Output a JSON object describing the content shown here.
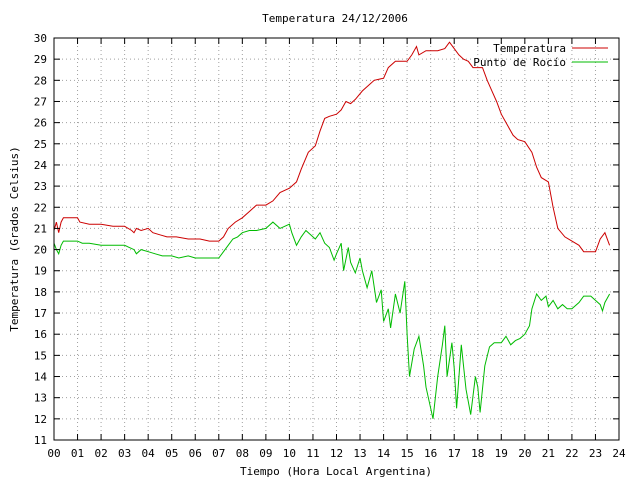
{
  "chart_data": {
    "type": "line",
    "title": "Temperatura 24/12/2006",
    "xlabel": "Tiempo (Hora Local Argentina)",
    "ylabel": "Temperatura (Grados Celsius)",
    "xlim": [
      0,
      24
    ],
    "ylim": [
      11,
      30
    ],
    "x_ticks": [
      "00",
      "01",
      "02",
      "03",
      "04",
      "05",
      "06",
      "07",
      "08",
      "09",
      "10",
      "11",
      "12",
      "13",
      "14",
      "15",
      "16",
      "17",
      "18",
      "19",
      "20",
      "21",
      "22",
      "23",
      "24"
    ],
    "y_ticks": [
      11,
      12,
      13,
      14,
      15,
      16,
      17,
      18,
      19,
      20,
      21,
      22,
      23,
      24,
      25,
      26,
      27,
      28,
      29,
      30
    ],
    "grid": true,
    "legend_position": "top-right",
    "series": [
      {
        "name": "Temperatura",
        "color": "#cc0000",
        "points": [
          [
            0.0,
            20.9
          ],
          [
            0.1,
            21.3
          ],
          [
            0.2,
            20.8
          ],
          [
            0.3,
            21.3
          ],
          [
            0.4,
            21.5
          ],
          [
            1.0,
            21.5
          ],
          [
            1.1,
            21.3
          ],
          [
            1.5,
            21.2
          ],
          [
            2.0,
            21.2
          ],
          [
            2.5,
            21.1
          ],
          [
            3.0,
            21.1
          ],
          [
            3.3,
            20.9
          ],
          [
            3.4,
            20.8
          ],
          [
            3.5,
            21.0
          ],
          [
            3.7,
            20.9
          ],
          [
            4.0,
            21.0
          ],
          [
            4.2,
            20.8
          ],
          [
            4.5,
            20.7
          ],
          [
            4.8,
            20.6
          ],
          [
            5.2,
            20.6
          ],
          [
            5.7,
            20.5
          ],
          [
            6.2,
            20.5
          ],
          [
            6.6,
            20.4
          ],
          [
            7.0,
            20.4
          ],
          [
            7.2,
            20.6
          ],
          [
            7.4,
            21.0
          ],
          [
            7.7,
            21.3
          ],
          [
            8.0,
            21.5
          ],
          [
            8.3,
            21.8
          ],
          [
            8.6,
            22.1
          ],
          [
            9.0,
            22.1
          ],
          [
            9.3,
            22.3
          ],
          [
            9.6,
            22.7
          ],
          [
            10.0,
            22.9
          ],
          [
            10.3,
            23.2
          ],
          [
            10.5,
            23.8
          ],
          [
            10.8,
            24.6
          ],
          [
            11.1,
            24.9
          ],
          [
            11.3,
            25.6
          ],
          [
            11.5,
            26.2
          ],
          [
            11.7,
            26.3
          ],
          [
            12.0,
            26.4
          ],
          [
            12.2,
            26.6
          ],
          [
            12.4,
            27.0
          ],
          [
            12.6,
            26.9
          ],
          [
            12.8,
            27.1
          ],
          [
            13.1,
            27.5
          ],
          [
            13.4,
            27.8
          ],
          [
            13.6,
            28.0
          ],
          [
            14.0,
            28.1
          ],
          [
            14.2,
            28.6
          ],
          [
            14.5,
            28.9
          ],
          [
            15.0,
            28.9
          ],
          [
            15.2,
            29.2
          ],
          [
            15.4,
            29.6
          ],
          [
            15.5,
            29.2
          ],
          [
            15.8,
            29.4
          ],
          [
            16.3,
            29.4
          ],
          [
            16.6,
            29.5
          ],
          [
            16.8,
            29.8
          ],
          [
            17.0,
            29.5
          ],
          [
            17.2,
            29.2
          ],
          [
            17.4,
            29.0
          ],
          [
            17.6,
            28.9
          ],
          [
            17.8,
            28.6
          ],
          [
            18.2,
            28.6
          ],
          [
            18.4,
            28.0
          ],
          [
            18.6,
            27.5
          ],
          [
            18.8,
            27.0
          ],
          [
            19.0,
            26.4
          ],
          [
            19.3,
            25.8
          ],
          [
            19.5,
            25.4
          ],
          [
            19.7,
            25.2
          ],
          [
            20.0,
            25.1
          ],
          [
            20.3,
            24.6
          ],
          [
            20.5,
            23.9
          ],
          [
            20.7,
            23.4
          ],
          [
            21.0,
            23.2
          ],
          [
            21.2,
            22.0
          ],
          [
            21.4,
            21.0
          ],
          [
            21.7,
            20.6
          ],
          [
            22.0,
            20.4
          ],
          [
            22.3,
            20.2
          ],
          [
            22.5,
            19.9
          ],
          [
            22.8,
            19.9
          ],
          [
            23.0,
            19.9
          ],
          [
            23.2,
            20.5
          ],
          [
            23.4,
            20.8
          ],
          [
            23.6,
            20.2
          ]
        ]
      },
      {
        "name": "Punto de Rocío",
        "color": "#00bb00",
        "points": [
          [
            0.0,
            20.3
          ],
          [
            0.1,
            20.0
          ],
          [
            0.2,
            19.8
          ],
          [
            0.3,
            20.2
          ],
          [
            0.4,
            20.4
          ],
          [
            1.0,
            20.4
          ],
          [
            1.2,
            20.3
          ],
          [
            1.5,
            20.3
          ],
          [
            2.0,
            20.2
          ],
          [
            2.5,
            20.2
          ],
          [
            3.0,
            20.2
          ],
          [
            3.4,
            20.0
          ],
          [
            3.5,
            19.8
          ],
          [
            3.7,
            20.0
          ],
          [
            4.0,
            19.9
          ],
          [
            4.3,
            19.8
          ],
          [
            4.6,
            19.7
          ],
          [
            5.0,
            19.7
          ],
          [
            5.3,
            19.6
          ],
          [
            5.7,
            19.7
          ],
          [
            6.0,
            19.6
          ],
          [
            6.5,
            19.6
          ],
          [
            7.0,
            19.6
          ],
          [
            7.2,
            19.9
          ],
          [
            7.4,
            20.2
          ],
          [
            7.6,
            20.5
          ],
          [
            7.8,
            20.6
          ],
          [
            8.0,
            20.8
          ],
          [
            8.3,
            20.9
          ],
          [
            8.6,
            20.9
          ],
          [
            9.0,
            21.0
          ],
          [
            9.3,
            21.3
          ],
          [
            9.6,
            21.0
          ],
          [
            9.8,
            21.1
          ],
          [
            10.0,
            21.2
          ],
          [
            10.1,
            20.8
          ],
          [
            10.3,
            20.2
          ],
          [
            10.5,
            20.6
          ],
          [
            10.7,
            20.9
          ],
          [
            10.9,
            20.7
          ],
          [
            11.1,
            20.5
          ],
          [
            11.3,
            20.8
          ],
          [
            11.5,
            20.3
          ],
          [
            11.7,
            20.1
          ],
          [
            11.9,
            19.5
          ],
          [
            12.0,
            19.8
          ],
          [
            12.2,
            20.3
          ],
          [
            12.3,
            19.0
          ],
          [
            12.5,
            20.1
          ],
          [
            12.6,
            19.4
          ],
          [
            12.8,
            18.9
          ],
          [
            13.0,
            19.6
          ],
          [
            13.1,
            19.0
          ],
          [
            13.3,
            18.2
          ],
          [
            13.5,
            19.0
          ],
          [
            13.7,
            17.5
          ],
          [
            13.9,
            18.1
          ],
          [
            14.0,
            16.6
          ],
          [
            14.2,
            17.2
          ],
          [
            14.3,
            16.3
          ],
          [
            14.5,
            17.9
          ],
          [
            14.7,
            17.0
          ],
          [
            14.9,
            18.5
          ],
          [
            15.0,
            16.0
          ],
          [
            15.1,
            14.0
          ],
          [
            15.3,
            15.3
          ],
          [
            15.5,
            15.9
          ],
          [
            15.7,
            14.5
          ],
          [
            15.8,
            13.5
          ],
          [
            16.0,
            12.5
          ],
          [
            16.1,
            12.0
          ],
          [
            16.3,
            14.0
          ],
          [
            16.5,
            15.5
          ],
          [
            16.6,
            16.4
          ],
          [
            16.7,
            14.0
          ],
          [
            16.9,
            15.6
          ],
          [
            17.0,
            14.4
          ],
          [
            17.1,
            12.5
          ],
          [
            17.3,
            15.5
          ],
          [
            17.5,
            13.4
          ],
          [
            17.7,
            12.2
          ],
          [
            17.9,
            14.0
          ],
          [
            18.0,
            13.5
          ],
          [
            18.1,
            12.3
          ],
          [
            18.3,
            14.5
          ],
          [
            18.5,
            15.4
          ],
          [
            18.7,
            15.6
          ],
          [
            19.0,
            15.6
          ],
          [
            19.2,
            15.9
          ],
          [
            19.4,
            15.5
          ],
          [
            19.6,
            15.7
          ],
          [
            19.8,
            15.8
          ],
          [
            20.0,
            16.0
          ],
          [
            20.2,
            16.4
          ],
          [
            20.3,
            17.2
          ],
          [
            20.5,
            17.9
          ],
          [
            20.7,
            17.6
          ],
          [
            20.9,
            17.8
          ],
          [
            21.0,
            17.3
          ],
          [
            21.2,
            17.6
          ],
          [
            21.4,
            17.2
          ],
          [
            21.6,
            17.4
          ],
          [
            21.8,
            17.2
          ],
          [
            22.0,
            17.2
          ],
          [
            22.3,
            17.5
          ],
          [
            22.5,
            17.8
          ],
          [
            22.8,
            17.8
          ],
          [
            23.0,
            17.6
          ],
          [
            23.2,
            17.4
          ],
          [
            23.3,
            17.1
          ],
          [
            23.4,
            17.5
          ],
          [
            23.6,
            17.9
          ]
        ]
      }
    ]
  }
}
